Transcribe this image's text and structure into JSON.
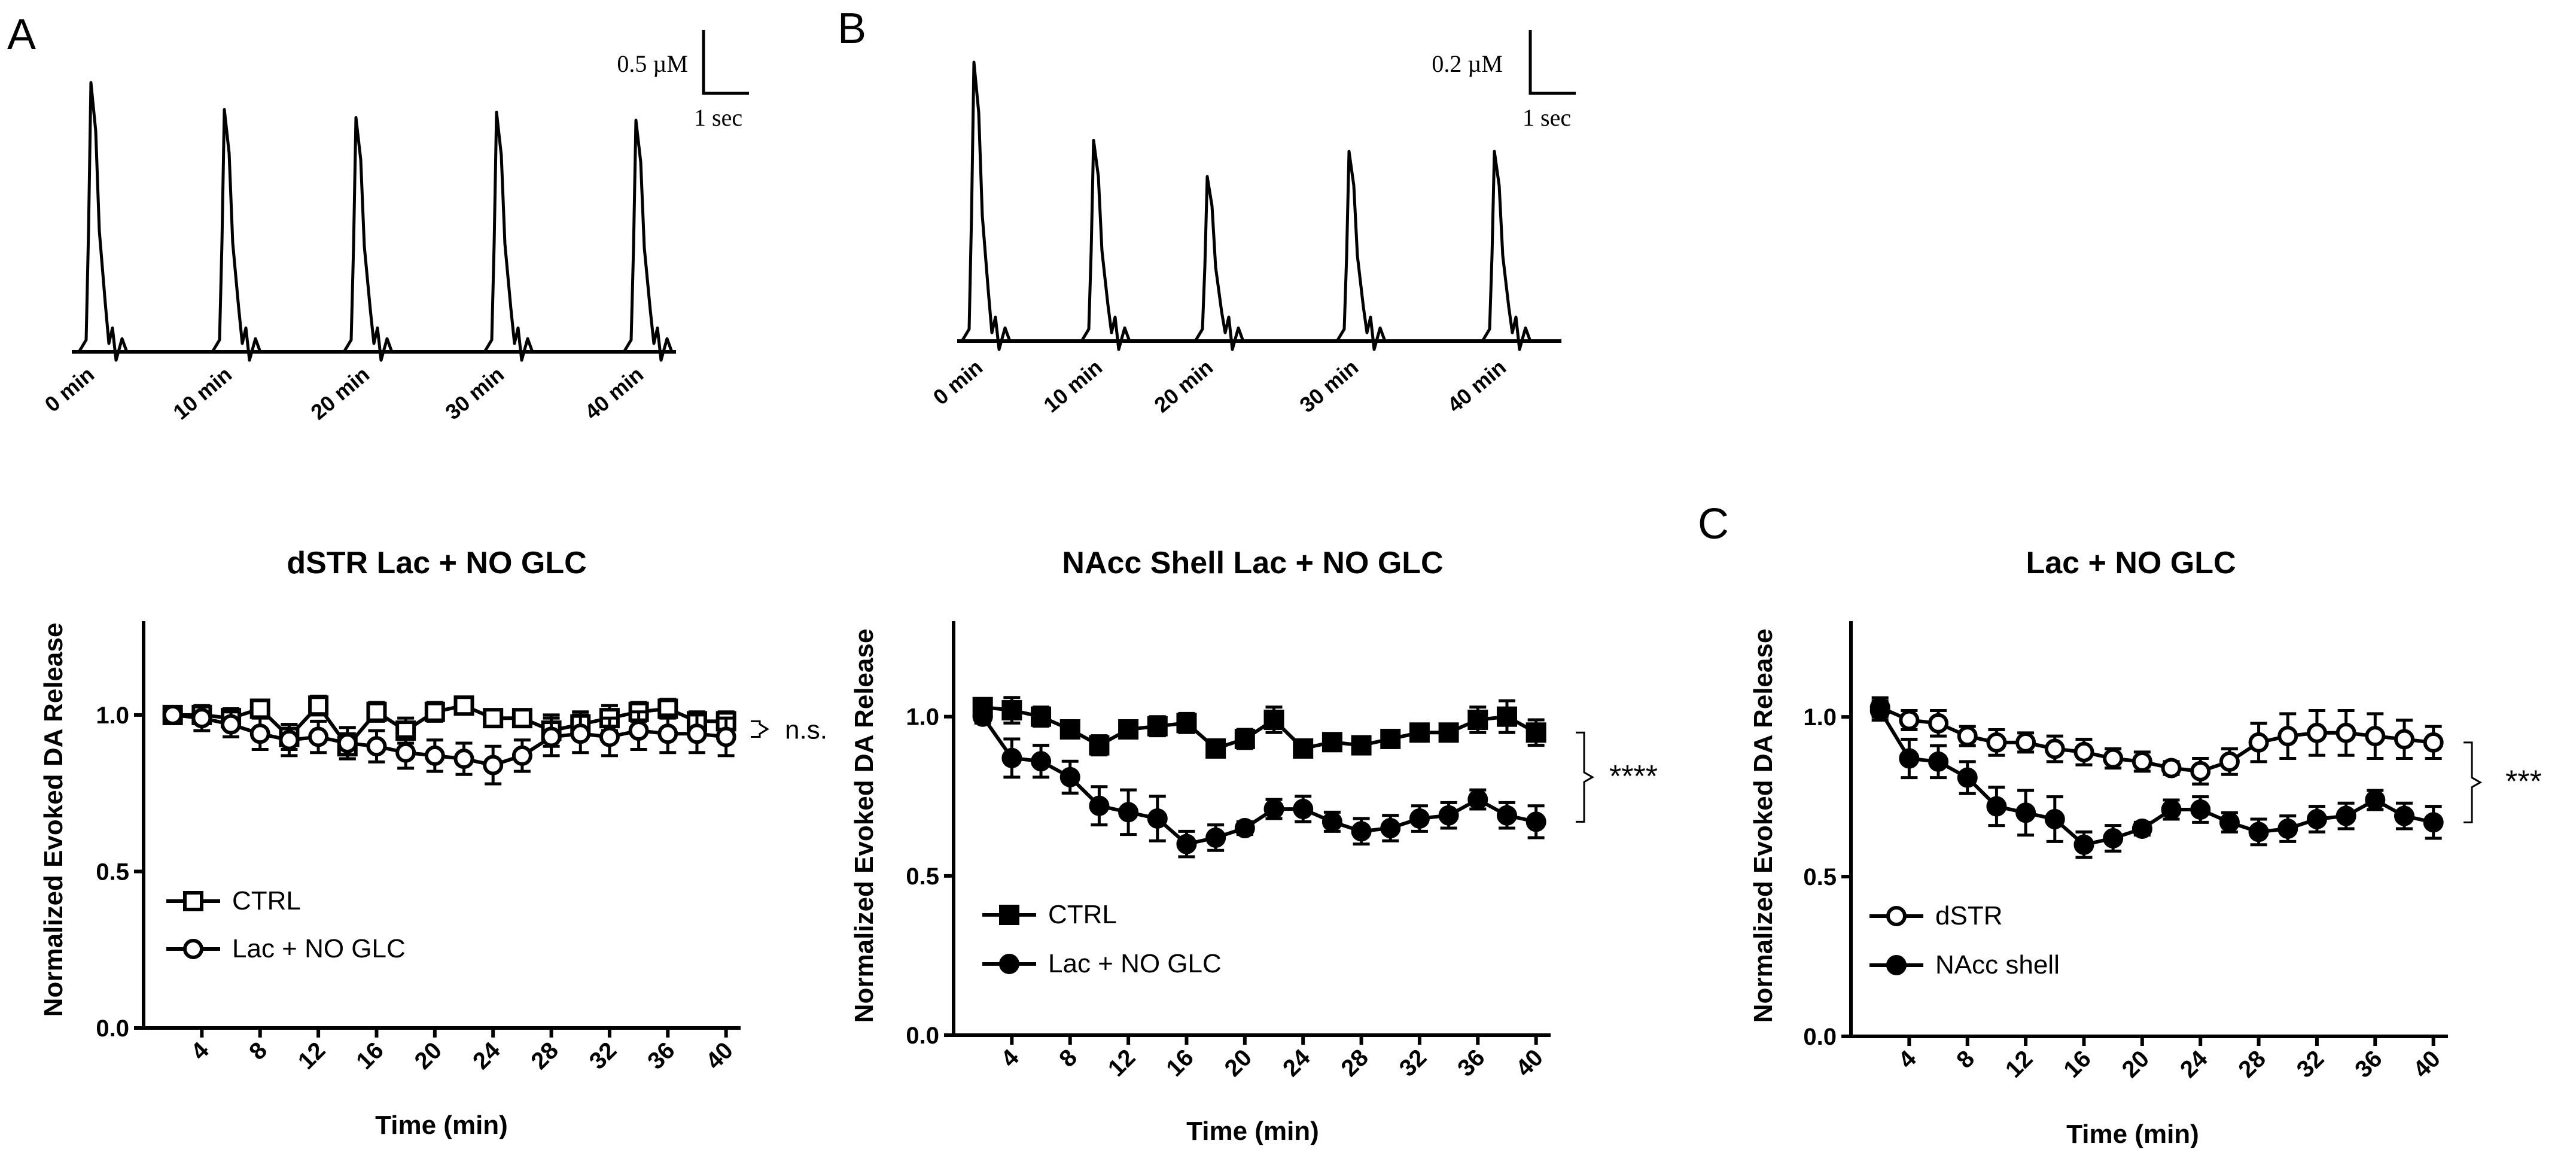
{
  "panels": [
    {
      "letter": "A"
    },
    {
      "letter": "B"
    },
    {
      "letter": "C"
    }
  ],
  "traces": [
    {
      "scale_conc": "0.5 µM",
      "scale_time": "1 sec",
      "time_labels": [
        "0 min",
        "10 min",
        "20 min",
        "30 min",
        "40 min"
      ],
      "peak_heights": [
        1.0,
        0.9,
        0.87,
        0.89,
        0.86
      ]
    },
    {
      "scale_conc": "0.2 µM",
      "scale_time": "1 sec",
      "time_labels": [
        "0 min",
        "10 min",
        "20 min",
        "30 min",
        "40 min"
      ],
      "peak_heights": [
        1.0,
        0.72,
        0.59,
        0.68,
        0.68
      ]
    }
  ],
  "chart_data": [
    {
      "type": "line",
      "title": "dSTR Lac + NO GLC",
      "xlabel": "Time (min)",
      "ylabel": "Normalized Evoked DA Release",
      "xlim": [
        0,
        41
      ],
      "ylim": [
        0,
        1.3
      ],
      "xticks": [
        4,
        8,
        12,
        16,
        20,
        24,
        28,
        32,
        36,
        40
      ],
      "yticks": [
        "0.0",
        "0.5",
        "1.0"
      ],
      "x": [
        2,
        4,
        6,
        8,
        10,
        12,
        14,
        16,
        18,
        20,
        22,
        24,
        26,
        28,
        30,
        32,
        34,
        36,
        38,
        40
      ],
      "series": [
        {
          "name": "CTRL",
          "marker": "open-square",
          "values": [
            1.0,
            1.0,
            0.99,
            1.02,
            0.93,
            1.03,
            0.9,
            1.01,
            0.95,
            1.01,
            1.03,
            0.99,
            0.99,
            0.95,
            0.97,
            0.99,
            1.01,
            1.02,
            0.98,
            0.98
          ],
          "errors": [
            0.02,
            0.02,
            0.03,
            0.02,
            0.04,
            0.03,
            0.04,
            0.03,
            0.04,
            0.03,
            0.02,
            0.02,
            0.02,
            0.05,
            0.04,
            0.04,
            0.03,
            0.03,
            0.03,
            0.03
          ]
        },
        {
          "name": "Lac + NO GLC",
          "marker": "open-circle",
          "values": [
            1.0,
            0.99,
            0.97,
            0.94,
            0.92,
            0.93,
            0.91,
            0.9,
            0.88,
            0.87,
            0.86,
            0.84,
            0.87,
            0.93,
            0.94,
            0.93,
            0.95,
            0.94,
            0.94,
            0.93
          ],
          "errors": [
            0.02,
            0.04,
            0.04,
            0.05,
            0.05,
            0.05,
            0.05,
            0.05,
            0.05,
            0.05,
            0.05,
            0.06,
            0.05,
            0.06,
            0.06,
            0.06,
            0.06,
            0.06,
            0.06,
            0.06
          ]
        }
      ],
      "legend": [
        {
          "label": "CTRL",
          "marker": "open-square"
        },
        {
          "label": "Lac + NO GLC",
          "marker": "open-circle"
        }
      ],
      "legend_position": "bottom-left",
      "significance": "n.s."
    },
    {
      "type": "line",
      "title": "NAcc  Shell Lac + NO GLC",
      "xlabel": "Time (min)",
      "ylabel": "Normalized Evoked DA Release",
      "xlim": [
        0,
        41
      ],
      "ylim": [
        0,
        1.3
      ],
      "xticks": [
        4,
        8,
        12,
        16,
        20,
        24,
        28,
        32,
        36,
        40
      ],
      "yticks": [
        "0.0",
        "0.5",
        "1.0"
      ],
      "x": [
        2,
        4,
        6,
        8,
        10,
        12,
        14,
        16,
        18,
        20,
        22,
        24,
        26,
        28,
        30,
        32,
        34,
        36,
        38,
        40
      ],
      "series": [
        {
          "name": "CTRL",
          "marker": "filled-square",
          "values": [
            1.03,
            1.02,
            1.0,
            0.96,
            0.91,
            0.96,
            0.97,
            0.98,
            0.9,
            0.93,
            0.99,
            0.9,
            0.92,
            0.91,
            0.93,
            0.95,
            0.95,
            0.99,
            1.0,
            0.95
          ],
          "errors": [
            0.02,
            0.04,
            0.03,
            0.02,
            0.03,
            0.02,
            0.03,
            0.03,
            0.02,
            0.03,
            0.04,
            0.02,
            0.02,
            0.02,
            0.02,
            0.02,
            0.02,
            0.04,
            0.05,
            0.04
          ]
        },
        {
          "name": "Lac + NO GLC",
          "marker": "filled-circle",
          "values": [
            1.0,
            0.87,
            0.86,
            0.81,
            0.72,
            0.7,
            0.68,
            0.6,
            0.62,
            0.65,
            0.71,
            0.71,
            0.67,
            0.64,
            0.65,
            0.68,
            0.69,
            0.74,
            0.69,
            0.67
          ],
          "errors": [
            0.02,
            0.06,
            0.05,
            0.05,
            0.06,
            0.07,
            0.07,
            0.04,
            0.04,
            0.02,
            0.03,
            0.04,
            0.03,
            0.04,
            0.04,
            0.04,
            0.04,
            0.03,
            0.04,
            0.05
          ]
        }
      ],
      "legend": [
        {
          "label": "CTRL",
          "marker": "filled-square"
        },
        {
          "label": "Lac + NO GLC",
          "marker": "filled-circle"
        }
      ],
      "legend_position": "bottom-left",
      "significance": "****"
    },
    {
      "type": "line",
      "title": "Lac + NO GLC",
      "xlabel": "Time (min)",
      "ylabel": "Normalized Evoked DA Release",
      "xlim": [
        0,
        41
      ],
      "ylim": [
        0,
        1.3
      ],
      "xticks": [
        4,
        8,
        12,
        16,
        20,
        24,
        28,
        32,
        36,
        40
      ],
      "yticks": [
        "0.0",
        "0.5",
        "1.0"
      ],
      "x": [
        2,
        4,
        6,
        8,
        10,
        12,
        14,
        16,
        18,
        20,
        22,
        24,
        26,
        28,
        30,
        32,
        34,
        36,
        38,
        40
      ],
      "series": [
        {
          "name": "dSTR",
          "marker": "open-circle",
          "values": [
            1.03,
            0.99,
            0.98,
            0.94,
            0.92,
            0.92,
            0.9,
            0.89,
            0.87,
            0.86,
            0.84,
            0.83,
            0.86,
            0.92,
            0.94,
            0.95,
            0.95,
            0.94,
            0.93,
            0.92
          ],
          "errors": [
            0.03,
            0.03,
            0.04,
            0.03,
            0.04,
            0.03,
            0.04,
            0.04,
            0.03,
            0.03,
            0.02,
            0.04,
            0.04,
            0.06,
            0.07,
            0.07,
            0.07,
            0.07,
            0.06,
            0.05
          ]
        },
        {
          "name": "NAcc shell",
          "marker": "filled-circle",
          "values": [
            1.02,
            0.87,
            0.86,
            0.81,
            0.72,
            0.7,
            0.68,
            0.6,
            0.62,
            0.65,
            0.71,
            0.71,
            0.67,
            0.64,
            0.65,
            0.68,
            0.69,
            0.74,
            0.69,
            0.67
          ],
          "errors": [
            0.03,
            0.06,
            0.05,
            0.05,
            0.06,
            0.07,
            0.07,
            0.04,
            0.04,
            0.02,
            0.03,
            0.04,
            0.03,
            0.04,
            0.04,
            0.04,
            0.04,
            0.03,
            0.04,
            0.05
          ]
        }
      ],
      "legend": [
        {
          "label": "dSTR",
          "marker": "open-circle"
        },
        {
          "label": "NAcc shell",
          "marker": "filled-circle"
        }
      ],
      "legend_position": "bottom-left",
      "significance": "***"
    }
  ]
}
